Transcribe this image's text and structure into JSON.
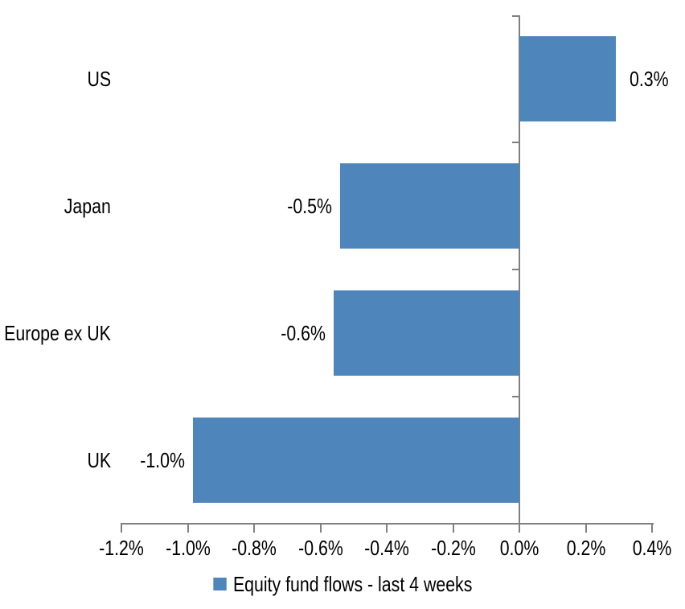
{
  "chart_data": {
    "type": "bar",
    "orientation": "horizontal",
    "title": "",
    "xlabel": "",
    "ylabel": "",
    "categories": [
      "US",
      "Japan",
      "Europe ex UK",
      "UK"
    ],
    "values": [
      0.3,
      -0.5,
      -0.6,
      -1.0
    ],
    "bars": [
      {
        "category": "US",
        "value": 0.3,
        "value_label": "0.3%",
        "plot_value": 0.29
      },
      {
        "category": "Japan",
        "value": -0.5,
        "value_label": "-0.5%",
        "plot_value": -0.54
      },
      {
        "category": "Europe ex UK",
        "value": -0.6,
        "value_label": "-0.6%",
        "plot_value": -0.56
      },
      {
        "category": "UK",
        "value": -1.0,
        "value_label": "-1.0%",
        "plot_value": -0.985
      }
    ],
    "xlim": [
      -1.2,
      0.4
    ],
    "x_ticks": {
      "labels": [
        "-1.2%",
        "-1.0%",
        "-0.8%",
        "-0.6%",
        "-0.4%",
        "-0.2%",
        "0.0%",
        "0.2%",
        "0.4%"
      ],
      "values": [
        -1.2,
        -1.0,
        -0.8,
        -0.6,
        -0.4,
        -0.2,
        0.0,
        0.2,
        0.4
      ]
    },
    "grid": false,
    "legend": {
      "position": "bottom",
      "label": "Equity fund flows - last 4 weeks"
    }
  },
  "colors": {
    "bar": "#4E86BC",
    "axis": "#808080",
    "text": "#000000",
    "background": "#FFFFFF"
  }
}
